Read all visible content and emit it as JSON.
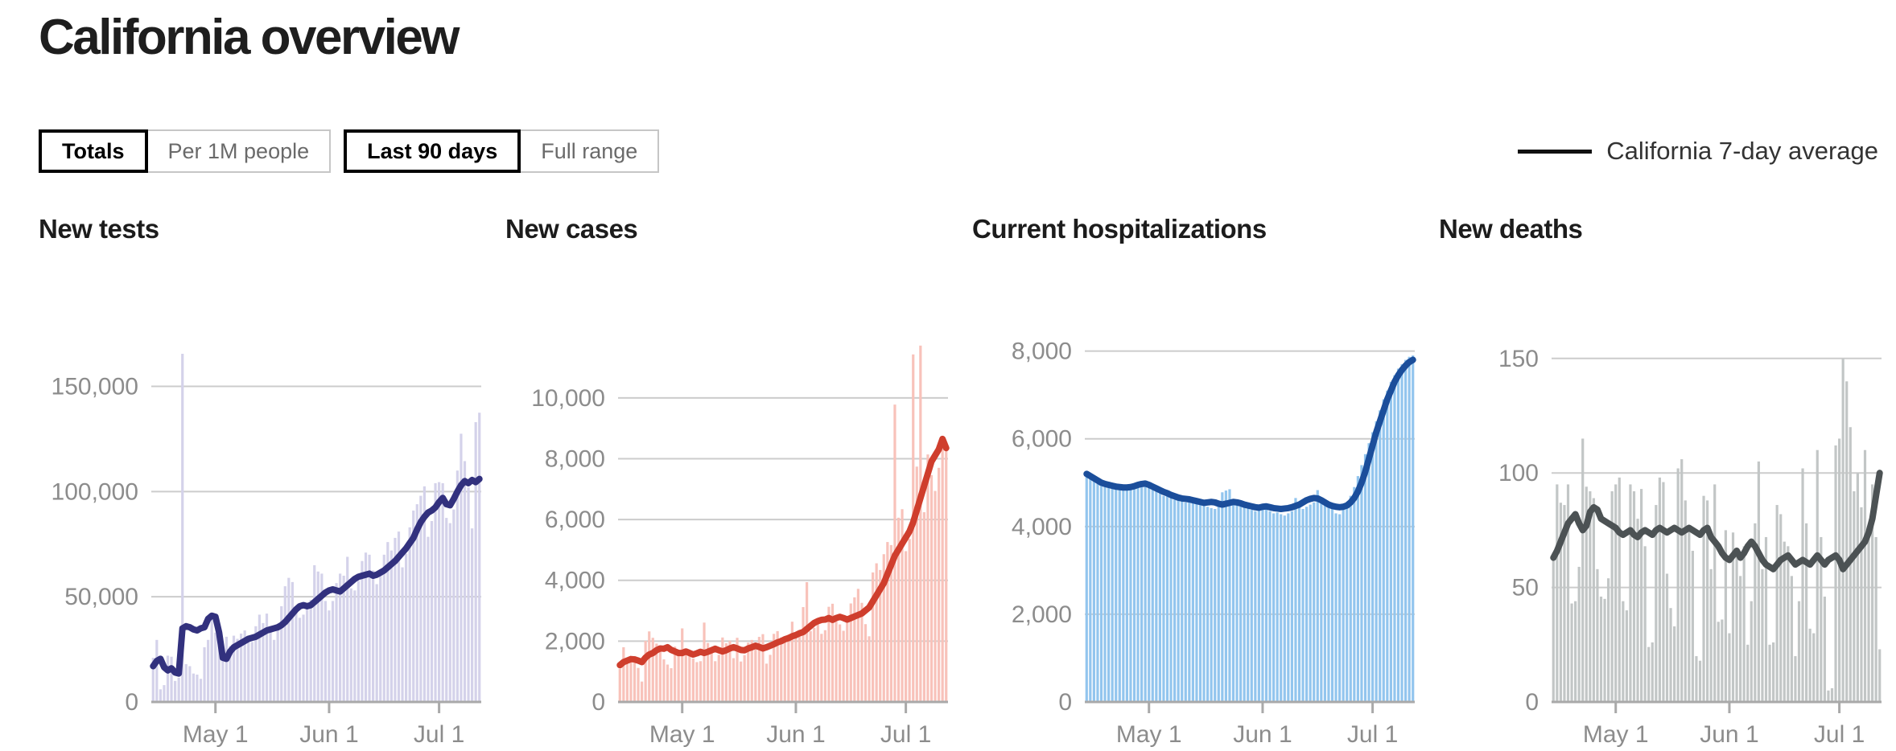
{
  "page": {
    "title": "California overview"
  },
  "controls": {
    "unit_toggle": [
      {
        "label": "Totals",
        "active": true
      },
      {
        "label": "Per 1M people",
        "active": false
      }
    ],
    "range_toggle": [
      {
        "label": "Last 90 days",
        "active": true
      },
      {
        "label": "Full range",
        "active": false
      }
    ]
  },
  "legend": {
    "label": "California 7-day average",
    "line_color": "#111111"
  },
  "colors": {
    "gridline": "#cccccc",
    "axis": "#a9a9a9",
    "tick_text": "#8c8c8c"
  },
  "chart_data": [
    {
      "type": "bar",
      "title": "New tests",
      "bar_color": "#d4d2ea",
      "line_color": "#32317e",
      "legend": "California 7-day average",
      "grid": true,
      "y_plot_max": 172000,
      "y_ticks": [
        {
          "v": 0,
          "label": "0"
        },
        {
          "v": 50000,
          "label": "50,000"
        },
        {
          "v": 100000,
          "label": "100,000"
        },
        {
          "v": 150000,
          "label": "150,000"
        }
      ],
      "x_ticks": [
        {
          "day": 17,
          "label": "May 1"
        },
        {
          "day": 48,
          "label": "Jun 1"
        },
        {
          "day": 78,
          "label": "Jul 1"
        }
      ],
      "bars": [
        21000,
        29500,
        6000,
        8000,
        22000,
        21500,
        10000,
        11500,
        165500,
        18000,
        17000,
        13500,
        13000,
        11000,
        26000,
        29500,
        41000,
        33000,
        27500,
        25000,
        31000,
        26500,
        31500,
        30000,
        32500,
        34000,
        29000,
        28500,
        36000,
        41500,
        37500,
        42000,
        35500,
        29500,
        37000,
        45500,
        55000,
        59000,
        57000,
        43500,
        40000,
        41500,
        46000,
        48500,
        65000,
        62000,
        61000,
        48000,
        43500,
        48000,
        56500,
        61000,
        60000,
        69000,
        54000,
        53000,
        57500,
        67000,
        71000,
        70000,
        62500,
        56000,
        62000,
        70000,
        76000,
        72000,
        78000,
        81000,
        64000,
        70500,
        83000,
        91000,
        94000,
        98000,
        102500,
        78500,
        86000,
        104000,
        104500,
        104000,
        87500,
        85000,
        91500,
        110000,
        127500,
        114500,
        102000,
        82500,
        133000,
        137500
      ],
      "avg_line": [
        17000,
        19500,
        20500,
        16500,
        15000,
        16000,
        14000,
        13500,
        35000,
        36000,
        35500,
        34500,
        34000,
        35000,
        35500,
        39500,
        41000,
        40500,
        33000,
        21000,
        20500,
        24000,
        26000,
        27000,
        28000,
        29000,
        30000,
        30500,
        31000,
        32000,
        33000,
        34000,
        34500,
        35000,
        35500,
        36500,
        38000,
        40000,
        42000,
        44000,
        45500,
        46000,
        45500,
        46000,
        47500,
        49000,
        50500,
        52000,
        53000,
        53500,
        53000,
        52500,
        54000,
        55500,
        57000,
        58500,
        59500,
        60000,
        60500,
        61000,
        60000,
        60500,
        61500,
        62500,
        64000,
        65500,
        67000,
        69000,
        71000,
        73000,
        75500,
        78000,
        82000,
        85500,
        88000,
        90000,
        91000,
        92500,
        95000,
        97000,
        94000,
        93500,
        96500,
        100000,
        103000,
        105000,
        104000,
        105500,
        104500,
        106000
      ]
    },
    {
      "type": "bar",
      "title": "New cases",
      "bar_color": "#f8c2ba",
      "line_color": "#cf3e2d",
      "legend": "California 7-day average",
      "grid": true,
      "y_plot_max": 11900,
      "y_ticks": [
        {
          "v": 0,
          "label": "0"
        },
        {
          "v": 2000,
          "label": "2,000"
        },
        {
          "v": 4000,
          "label": "4,000"
        },
        {
          "v": 6000,
          "label": "6,000"
        },
        {
          "v": 8000,
          "label": "8,000"
        },
        {
          "v": 10000,
          "label": "10,000"
        }
      ],
      "x_ticks": [
        {
          "day": 17,
          "label": "May 1"
        },
        {
          "day": 48,
          "label": "Jun 1"
        },
        {
          "day": 78,
          "label": "Jul 1"
        }
      ],
      "bars": [
        1090,
        1800,
        1310,
        1420,
        1510,
        1120,
        670,
        2010,
        2320,
        2110,
        1920,
        1810,
        1400,
        1230,
        1110,
        1820,
        1630,
        2420,
        1610,
        1520,
        1430,
        1310,
        1340,
        2610,
        1940,
        1720,
        1340,
        1550,
        2120,
        1930,
        2010,
        1440,
        2110,
        1330,
        1540,
        1950,
        2040,
        1830,
        2140,
        2230,
        1260,
        1550,
        2240,
        2330,
        2120,
        2050,
        2210,
        2640,
        2250,
        2340,
        3120,
        3940,
        2330,
        2440,
        2620,
        2240,
        2360,
        3130,
        3230,
        2640,
        2550,
        2340,
        2660,
        3240,
        3440,
        3720,
        3260,
        2560,
        2160,
        4260,
        4560,
        4340,
        4860,
        5260,
        5160,
        9780,
        6060,
        6340,
        4960,
        5360,
        11430,
        7740,
        11720,
        6240,
        8140,
        7460,
        6940,
        7700,
        8340,
        8300
      ],
      "avg_line": [
        1210,
        1310,
        1360,
        1410,
        1400,
        1360,
        1310,
        1460,
        1560,
        1610,
        1700,
        1760,
        1750,
        1800,
        1710,
        1660,
        1610,
        1610,
        1660,
        1610,
        1560,
        1600,
        1650,
        1610,
        1650,
        1700,
        1750,
        1700,
        1660,
        1700,
        1760,
        1800,
        1760,
        1710,
        1700,
        1760,
        1800,
        1850,
        1810,
        1760,
        1800,
        1850,
        1900,
        1960,
        2000,
        2060,
        2100,
        2160,
        2200,
        2260,
        2300,
        2400,
        2500,
        2600,
        2660,
        2700,
        2710,
        2760,
        2700,
        2760,
        2800,
        2760,
        2710,
        2760,
        2810,
        2860,
        2910,
        3010,
        3110,
        3310,
        3510,
        3710,
        3910,
        4210,
        4510,
        4810,
        5010,
        5210,
        5410,
        5610,
        5910,
        6310,
        6710,
        7110,
        7510,
        7910,
        8110,
        8310,
        8650,
        8350
      ]
    },
    {
      "type": "bar",
      "title": "Current hospitalizations",
      "bar_color": "#92c5ee",
      "line_color": "#1b4e9b",
      "legend": "California 7-day average",
      "grid": true,
      "y_plot_max": 8250,
      "y_ticks": [
        {
          "v": 0,
          "label": "0"
        },
        {
          "v": 2000,
          "label": "2,000"
        },
        {
          "v": 4000,
          "label": "4,000"
        },
        {
          "v": 6000,
          "label": "6,000"
        },
        {
          "v": 8000,
          "label": "8,000"
        }
      ],
      "x_ticks": [
        {
          "day": 17,
          "label": "May 1"
        },
        {
          "day": 48,
          "label": "Jun 1"
        },
        {
          "day": 78,
          "label": "Jul 1"
        }
      ],
      "bars": [
        5150,
        5080,
        5050,
        4980,
        4950,
        4900,
        5020,
        4970,
        4890,
        4870,
        4900,
        4880,
        4920,
        4950,
        5000,
        5030,
        4980,
        4900,
        4850,
        4800,
        4760,
        4700,
        4720,
        4650,
        4610,
        4620,
        4580,
        4550,
        4560,
        4540,
        4520,
        4500,
        4550,
        4450,
        4420,
        4400,
        4450,
        4780,
        4820,
        4850,
        4600,
        4550,
        4500,
        4480,
        4420,
        4380,
        4350,
        4450,
        4420,
        4400,
        4350,
        4300,
        4320,
        4280,
        4250,
        4300,
        4350,
        4650,
        4450,
        4400,
        4450,
        4500,
        4550,
        4830,
        4600,
        4550,
        4450,
        4400,
        4300,
        4280,
        4450,
        4550,
        4700,
        4900,
        5150,
        5400,
        5650,
        5900,
        6150,
        6400,
        6650,
        6900,
        7100,
        7300,
        7450,
        7600,
        7700,
        7800,
        7870,
        7900
      ],
      "avg_line": [
        5200,
        5150,
        5100,
        5050,
        5000,
        4970,
        4950,
        4930,
        4910,
        4900,
        4890,
        4890,
        4900,
        4920,
        4950,
        4970,
        4980,
        4950,
        4910,
        4870,
        4830,
        4790,
        4760,
        4720,
        4690,
        4660,
        4640,
        4630,
        4620,
        4600,
        4580,
        4560,
        4540,
        4550,
        4560,
        4550,
        4520,
        4500,
        4520,
        4540,
        4560,
        4550,
        4530,
        4500,
        4480,
        4460,
        4440,
        4430,
        4450,
        4460,
        4440,
        4420,
        4410,
        4400,
        4410,
        4420,
        4440,
        4470,
        4500,
        4550,
        4600,
        4630,
        4650,
        4640,
        4600,
        4550,
        4500,
        4470,
        4450,
        4440,
        4450,
        4480,
        4550,
        4650,
        4800,
        5000,
        5250,
        5550,
        5850,
        6150,
        6400,
        6650,
        6900,
        7100,
        7300,
        7450,
        7570,
        7670,
        7750,
        7800
      ]
    },
    {
      "type": "bar",
      "title": "New deaths",
      "bar_color": "#c2c6c6",
      "line_color": "#4c5254",
      "legend": "California 7-day average",
      "grid": true,
      "y_plot_max": 158,
      "y_ticks": [
        {
          "v": 0,
          "label": "0"
        },
        {
          "v": 50,
          "label": "50"
        },
        {
          "v": 100,
          "label": "100"
        },
        {
          "v": 150,
          "label": "150"
        }
      ],
      "x_ticks": [
        {
          "day": 17,
          "label": "May 1"
        },
        {
          "day": 48,
          "label": "Jun 1"
        },
        {
          "day": 78,
          "label": "Jul 1"
        }
      ],
      "bars": [
        63,
        95,
        87,
        86,
        95,
        43,
        44,
        59,
        115,
        94,
        92,
        89,
        58,
        46,
        45,
        54,
        92,
        95,
        98,
        44,
        40,
        95,
        92,
        80,
        93,
        68,
        24,
        26,
        86,
        98,
        96,
        56,
        41,
        33,
        102,
        106,
        88,
        77,
        66,
        20,
        18,
        90,
        88,
        58,
        95,
        35,
        36,
        75,
        30,
        74,
        65,
        55,
        68,
        25,
        44,
        78,
        105,
        58,
        72,
        25,
        26,
        86,
        82,
        70,
        68,
        55,
        20,
        44,
        102,
        78,
        32,
        30,
        110,
        72,
        46,
        5,
        6,
        112,
        115,
        150,
        140,
        120,
        92,
        100,
        85,
        110,
        75,
        95,
        72,
        23
      ],
      "avg_line": [
        63,
        66,
        70,
        74,
        78,
        80,
        82,
        78,
        75,
        77,
        83,
        85,
        84,
        80,
        79,
        78,
        77,
        76,
        74,
        73,
        74,
        75,
        73,
        72,
        74,
        75,
        74,
        73,
        75,
        76,
        75,
        74,
        75,
        76,
        75,
        74,
        75,
        76,
        75,
        74,
        73,
        75,
        76,
        72,
        70,
        68,
        65,
        63,
        62,
        64,
        66,
        63,
        65,
        68,
        70,
        68,
        65,
        62,
        60,
        59,
        58,
        60,
        62,
        63,
        64,
        62,
        60,
        61,
        62,
        61,
        60,
        62,
        64,
        62,
        60,
        62,
        63,
        64,
        62,
        58,
        60,
        62,
        64,
        66,
        68,
        70,
        74,
        80,
        90,
        100
      ]
    }
  ]
}
